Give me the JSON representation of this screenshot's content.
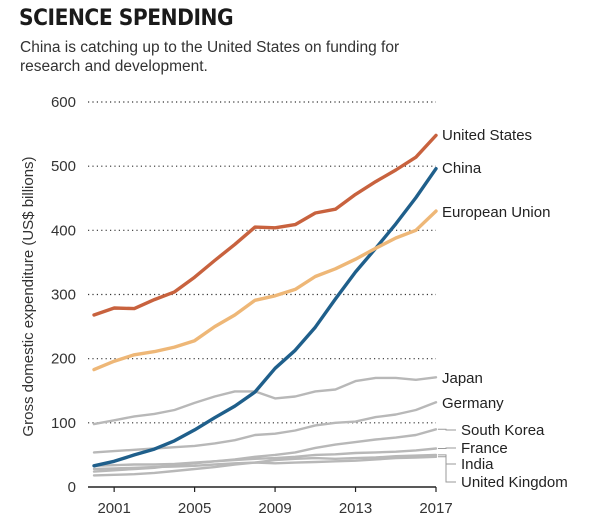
{
  "header": {
    "title": "SCIENCE SPENDING",
    "subtitle": "China is catching up to the United States on funding for research and development."
  },
  "chart_data": {
    "type": "line",
    "title": "SCIENCE SPENDING",
    "subtitle": "China is catching up to the United States on funding for research and development.",
    "xlabel": "",
    "ylabel": "Gross domestic expenditure (US$ billions)",
    "x": [
      2000,
      2001,
      2002,
      2003,
      2004,
      2005,
      2006,
      2007,
      2008,
      2009,
      2010,
      2011,
      2012,
      2013,
      2014,
      2015,
      2016,
      2017
    ],
    "xticks": [
      2001,
      2005,
      2009,
      2013,
      2017
    ],
    "yticks": [
      0,
      100,
      200,
      300,
      400,
      500,
      600
    ],
    "xlim": [
      1999.7,
      2017
    ],
    "ylim": [
      0,
      600
    ],
    "grid": "horizontal dotted",
    "series": [
      {
        "name": "United States",
        "color": "#c8623e",
        "bold": true,
        "values": [
          268,
          279,
          278,
          292,
          304,
          327,
          353,
          378,
          405,
          404,
          409,
          427,
          433,
          456,
          476,
          494,
          514,
          548
        ]
      },
      {
        "name": "China",
        "color": "#1f5f8b",
        "bold": true,
        "values": [
          33,
          40,
          50,
          59,
          72,
          89,
          108,
          126,
          148,
          185,
          213,
          249,
          293,
          335,
          372,
          410,
          451,
          496
        ]
      },
      {
        "name": "European Union",
        "color": "#eeb777",
        "bold": true,
        "values": [
          183,
          196,
          206,
          211,
          218,
          228,
          250,
          268,
          291,
          298,
          308,
          328,
          340,
          355,
          372,
          388,
          400,
          430
        ]
      },
      {
        "name": "Japan",
        "color": "#b8b8b8",
        "bold": false,
        "values": [
          98,
          104,
          110,
          114,
          120,
          131,
          141,
          149,
          149,
          138,
          141,
          149,
          152,
          165,
          170,
          170,
          167,
          171
        ]
      },
      {
        "name": "Germany",
        "color": "#b8b8b8",
        "bold": false,
        "values": [
          54,
          56,
          58,
          60,
          62,
          64,
          68,
          73,
          81,
          83,
          88,
          96,
          100,
          102,
          109,
          113,
          120,
          132
        ]
      },
      {
        "name": "South Korea",
        "color": "#b8b8b8",
        "bold": false,
        "values": [
          24,
          26,
          28,
          30,
          34,
          37,
          40,
          43,
          47,
          50,
          54,
          61,
          66,
          70,
          74,
          77,
          81,
          90
        ]
      },
      {
        "name": "France",
        "color": "#b8b8b8",
        "bold": false,
        "values": [
          33,
          34,
          35,
          35,
          36,
          38,
          40,
          42,
          44,
          45,
          47,
          50,
          51,
          53,
          54,
          55,
          57,
          60
        ]
      },
      {
        "name": "India",
        "color": "#b8b8b8",
        "bold": false,
        "values": [
          18,
          19,
          20,
          22,
          25,
          28,
          31,
          35,
          38,
          42,
          44,
          45,
          44,
          45,
          46,
          48,
          49,
          50
        ]
      },
      {
        "name": "United Kingdom",
        "color": "#b8b8b8",
        "bold": false,
        "values": [
          28,
          29,
          30,
          31,
          32,
          33,
          35,
          37,
          38,
          37,
          38,
          39,
          40,
          41,
          43,
          45,
          46,
          47
        ]
      }
    ]
  }
}
